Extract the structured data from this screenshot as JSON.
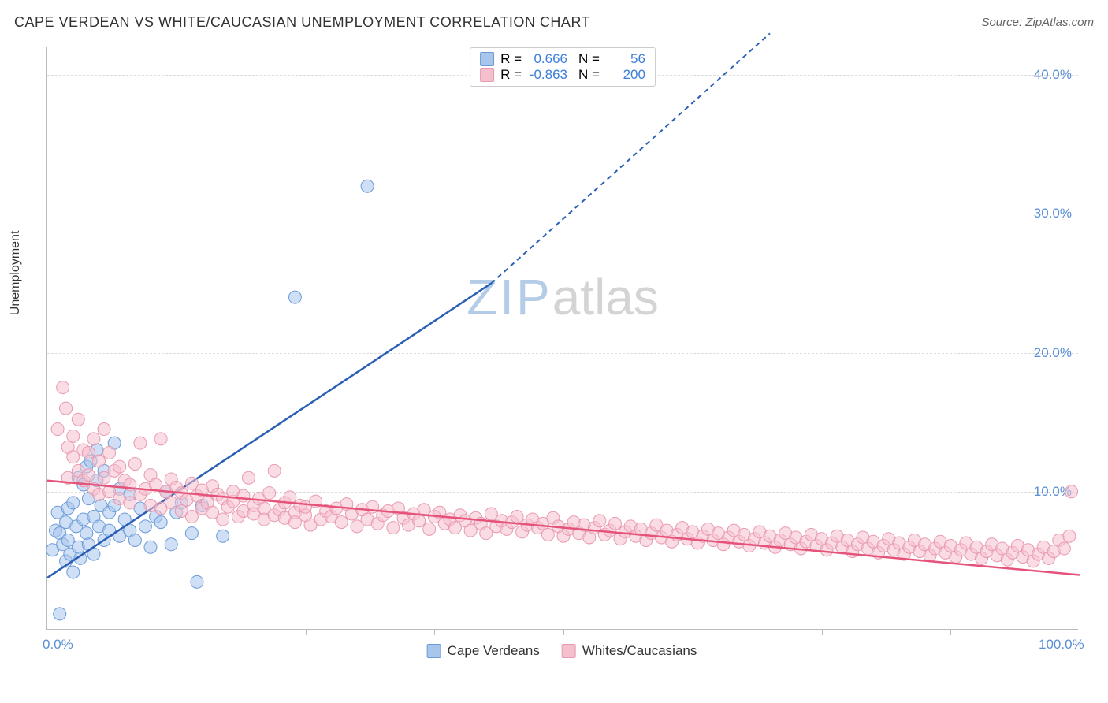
{
  "title": "CAPE VERDEAN VS WHITE/CAUCASIAN UNEMPLOYMENT CORRELATION CHART",
  "source_label": "Source: ZipAtlas.com",
  "y_axis_label": "Unemployment",
  "watermark_part1": "ZIP",
  "watermark_part2": "atlas",
  "watermark_color1": "#b5cce8",
  "watermark_color2": "#d4d4d4",
  "chart": {
    "type": "scatter",
    "xlim": [
      0,
      100
    ],
    "ylim": [
      0,
      42
    ],
    "x_ticks": [
      0,
      100
    ],
    "x_tick_labels": [
      "0.0%",
      "100.0%"
    ],
    "x_minor_ticks": [
      12.5,
      25,
      37.5,
      50,
      62.5,
      75,
      87.5
    ],
    "y_ticks": [
      10,
      20,
      30,
      40
    ],
    "y_tick_labels": [
      "10.0%",
      "20.0%",
      "30.0%",
      "40.0%"
    ],
    "y_tick_color": "#5b8fd6",
    "x_tick_color": "#5b8fd6",
    "grid_color": "#dddddd",
    "background_color": "#ffffff",
    "axis_color": "#bbbbbb",
    "marker_radius": 8,
    "marker_opacity": 0.55,
    "series": [
      {
        "name": "Cape Verdeans",
        "color_fill": "#a8c5ec",
        "color_stroke": "#6b9bd8",
        "r_value": "0.666",
        "n_value": "56",
        "trend": {
          "x1": 0,
          "y1": 3.8,
          "x2": 43,
          "y2": 25.0,
          "dashed_to_x": 70,
          "dashed_to_y": 43,
          "color": "#2a5fb5",
          "width": 2.5
        },
        "points": [
          [
            0.5,
            5.8
          ],
          [
            0.8,
            7.2
          ],
          [
            1.0,
            8.5
          ],
          [
            1.2,
            1.2
          ],
          [
            1.2,
            7.0
          ],
          [
            1.5,
            6.2
          ],
          [
            1.8,
            5.0
          ],
          [
            1.8,
            7.8
          ],
          [
            2.0,
            8.8
          ],
          [
            2.0,
            6.5
          ],
          [
            2.2,
            5.5
          ],
          [
            2.5,
            4.2
          ],
          [
            2.5,
            9.2
          ],
          [
            2.8,
            7.5
          ],
          [
            3.0,
            6.0
          ],
          [
            3.0,
            11.0
          ],
          [
            3.2,
            5.2
          ],
          [
            3.5,
            8.0
          ],
          [
            3.5,
            10.5
          ],
          [
            3.8,
            7.0
          ],
          [
            3.8,
            11.8
          ],
          [
            4.0,
            6.2
          ],
          [
            4.0,
            9.5
          ],
          [
            4.2,
            12.2
          ],
          [
            4.5,
            5.5
          ],
          [
            4.5,
            8.2
          ],
          [
            4.8,
            10.8
          ],
          [
            4.8,
            13.0
          ],
          [
            5.0,
            7.5
          ],
          [
            5.2,
            9.0
          ],
          [
            5.5,
            6.5
          ],
          [
            5.5,
            11.5
          ],
          [
            6.0,
            8.5
          ],
          [
            6.0,
            7.2
          ],
          [
            6.5,
            9.0
          ],
          [
            6.5,
            13.5
          ],
          [
            7.0,
            6.8
          ],
          [
            7.0,
            10.2
          ],
          [
            7.5,
            8.0
          ],
          [
            8.0,
            7.2
          ],
          [
            8.0,
            9.8
          ],
          [
            8.5,
            6.5
          ],
          [
            9.0,
            8.8
          ],
          [
            9.5,
            7.5
          ],
          [
            10.0,
            6.0
          ],
          [
            10.5,
            8.2
          ],
          [
            11.0,
            7.8
          ],
          [
            11.5,
            10.0
          ],
          [
            12.0,
            6.2
          ],
          [
            12.5,
            8.5
          ],
          [
            13.0,
            9.2
          ],
          [
            14.0,
            7.0
          ],
          [
            15.0,
            9.0
          ],
          [
            17.0,
            6.8
          ],
          [
            14.5,
            3.5
          ],
          [
            24.0,
            24.0
          ],
          [
            31.0,
            32.0
          ]
        ]
      },
      {
        "name": "Whites/Caucasians",
        "color_fill": "#f5c0ce",
        "color_stroke": "#e89ab0",
        "r_value": "-0.863",
        "n_value": "200",
        "trend": {
          "x1": 0,
          "y1": 10.8,
          "x2": 100,
          "y2": 4.0,
          "color": "#e6537a",
          "width": 2.5
        },
        "points": [
          [
            1.0,
            14.5
          ],
          [
            1.5,
            17.5
          ],
          [
            1.8,
            16.0
          ],
          [
            2.0,
            11.0
          ],
          [
            2.0,
            13.2
          ],
          [
            2.5,
            12.5
          ],
          [
            2.5,
            14.0
          ],
          [
            3.0,
            11.5
          ],
          [
            3.0,
            15.2
          ],
          [
            3.5,
            10.8
          ],
          [
            3.5,
            13.0
          ],
          [
            4.0,
            12.8
          ],
          [
            4.0,
            11.2
          ],
          [
            4.5,
            10.2
          ],
          [
            4.5,
            13.8
          ],
          [
            5.0,
            9.8
          ],
          [
            5.0,
            12.2
          ],
          [
            5.5,
            11.0
          ],
          [
            5.5,
            14.5
          ],
          [
            6.0,
            10.0
          ],
          [
            6.0,
            12.8
          ],
          [
            6.5,
            11.5
          ],
          [
            7.0,
            9.5
          ],
          [
            7.0,
            11.8
          ],
          [
            7.5,
            10.8
          ],
          [
            8.0,
            9.2
          ],
          [
            8.0,
            10.5
          ],
          [
            8.5,
            12.0
          ],
          [
            9.0,
            9.8
          ],
          [
            9.0,
            13.5
          ],
          [
            9.5,
            10.2
          ],
          [
            10.0,
            9.0
          ],
          [
            10.0,
            11.2
          ],
          [
            10.5,
            10.5
          ],
          [
            11.0,
            8.8
          ],
          [
            11.0,
            13.8
          ],
          [
            11.5,
            10.0
          ],
          [
            12.0,
            9.2
          ],
          [
            12.0,
            10.9
          ],
          [
            12.5,
            10.3
          ],
          [
            13.0,
            8.6
          ],
          [
            13.0,
            9.9
          ],
          [
            13.5,
            9.4
          ],
          [
            14.0,
            10.6
          ],
          [
            14.0,
            8.2
          ],
          [
            14.5,
            9.7
          ],
          [
            15.0,
            10.1
          ],
          [
            15.0,
            8.8
          ],
          [
            15.5,
            9.2
          ],
          [
            16.0,
            10.4
          ],
          [
            16.0,
            8.5
          ],
          [
            16.5,
            9.8
          ],
          [
            17.0,
            8.0
          ],
          [
            17.0,
            9.5
          ],
          [
            17.5,
            8.9
          ],
          [
            18.0,
            9.3
          ],
          [
            18.0,
            10.0
          ],
          [
            18.5,
            8.2
          ],
          [
            19.0,
            9.7
          ],
          [
            19.0,
            8.6
          ],
          [
            19.5,
            11.0
          ],
          [
            20.0,
            9.0
          ],
          [
            20.0,
            8.4
          ],
          [
            20.5,
            9.5
          ],
          [
            21.0,
            8.0
          ],
          [
            21.0,
            8.8
          ],
          [
            21.5,
            9.9
          ],
          [
            22.0,
            8.3
          ],
          [
            22.0,
            11.5
          ],
          [
            22.5,
            8.7
          ],
          [
            23.0,
            9.2
          ],
          [
            23.0,
            8.1
          ],
          [
            23.5,
            9.6
          ],
          [
            24.0,
            8.5
          ],
          [
            24.0,
            7.8
          ],
          [
            24.5,
            9.0
          ],
          [
            25.0,
            8.3
          ],
          [
            25.0,
            8.9
          ],
          [
            25.5,
            7.6
          ],
          [
            26.0,
            9.3
          ],
          [
            26.5,
            8.0
          ],
          [
            27.0,
            8.6
          ],
          [
            27.5,
            8.2
          ],
          [
            28.0,
            8.8
          ],
          [
            28.5,
            7.8
          ],
          [
            29.0,
            9.1
          ],
          [
            29.5,
            8.4
          ],
          [
            30.0,
            7.5
          ],
          [
            30.5,
            8.7
          ],
          [
            31.0,
            8.0
          ],
          [
            31.5,
            8.9
          ],
          [
            32.0,
            7.7
          ],
          [
            32.5,
            8.3
          ],
          [
            33.0,
            8.6
          ],
          [
            33.5,
            7.4
          ],
          [
            34.0,
            8.8
          ],
          [
            34.5,
            8.1
          ],
          [
            35.0,
            7.6
          ],
          [
            35.5,
            8.4
          ],
          [
            36.0,
            7.9
          ],
          [
            36.5,
            8.7
          ],
          [
            37.0,
            7.3
          ],
          [
            37.5,
            8.2
          ],
          [
            38.0,
            8.5
          ],
          [
            38.5,
            7.7
          ],
          [
            39.0,
            8.0
          ],
          [
            39.5,
            7.4
          ],
          [
            40.0,
            8.3
          ],
          [
            40.5,
            7.9
          ],
          [
            41.0,
            7.2
          ],
          [
            41.5,
            8.1
          ],
          [
            42.0,
            7.7
          ],
          [
            42.5,
            7.0
          ],
          [
            43.0,
            8.4
          ],
          [
            43.5,
            7.5
          ],
          [
            44.0,
            7.9
          ],
          [
            44.5,
            7.3
          ],
          [
            45.0,
            7.8
          ],
          [
            45.5,
            8.2
          ],
          [
            46.0,
            7.1
          ],
          [
            46.5,
            7.6
          ],
          [
            47.0,
            8.0
          ],
          [
            47.5,
            7.4
          ],
          [
            48.0,
            7.7
          ],
          [
            48.5,
            6.9
          ],
          [
            49.0,
            8.1
          ],
          [
            49.5,
            7.5
          ],
          [
            50.0,
            6.8
          ],
          [
            50.5,
            7.3
          ],
          [
            51.0,
            7.8
          ],
          [
            51.5,
            7.0
          ],
          [
            52.0,
            7.6
          ],
          [
            52.5,
            6.7
          ],
          [
            53.0,
            7.4
          ],
          [
            53.5,
            7.9
          ],
          [
            54.0,
            6.9
          ],
          [
            54.5,
            7.2
          ],
          [
            55.0,
            7.7
          ],
          [
            55.5,
            6.6
          ],
          [
            56.0,
            7.1
          ],
          [
            56.5,
            7.5
          ],
          [
            57.0,
            6.8
          ],
          [
            57.5,
            7.3
          ],
          [
            58.0,
            6.5
          ],
          [
            58.5,
            7.0
          ],
          [
            59.0,
            7.6
          ],
          [
            59.5,
            6.7
          ],
          [
            60.0,
            7.2
          ],
          [
            60.5,
            6.4
          ],
          [
            61.0,
            6.9
          ],
          [
            61.5,
            7.4
          ],
          [
            62.0,
            6.6
          ],
          [
            62.5,
            7.1
          ],
          [
            63.0,
            6.3
          ],
          [
            63.5,
            6.8
          ],
          [
            64.0,
            7.3
          ],
          [
            64.5,
            6.5
          ],
          [
            65.0,
            7.0
          ],
          [
            65.5,
            6.2
          ],
          [
            66.0,
            6.7
          ],
          [
            66.5,
            7.2
          ],
          [
            67.0,
            6.4
          ],
          [
            67.5,
            6.9
          ],
          [
            68.0,
            6.1
          ],
          [
            68.5,
            6.6
          ],
          [
            69.0,
            7.1
          ],
          [
            69.5,
            6.3
          ],
          [
            70.0,
            6.8
          ],
          [
            70.5,
            6.0
          ],
          [
            71.0,
            6.5
          ],
          [
            71.5,
            7.0
          ],
          [
            72.0,
            6.2
          ],
          [
            72.5,
            6.7
          ],
          [
            73.0,
            5.9
          ],
          [
            73.5,
            6.4
          ],
          [
            74.0,
            6.9
          ],
          [
            74.5,
            6.1
          ],
          [
            75.0,
            6.6
          ],
          [
            75.5,
            5.8
          ],
          [
            76.0,
            6.3
          ],
          [
            76.5,
            6.8
          ],
          [
            77.0,
            6.0
          ],
          [
            77.5,
            6.5
          ],
          [
            78.0,
            5.7
          ],
          [
            78.5,
            6.2
          ],
          [
            79.0,
            6.7
          ],
          [
            79.5,
            5.9
          ],
          [
            80.0,
            6.4
          ],
          [
            80.5,
            5.6
          ],
          [
            81.0,
            6.1
          ],
          [
            81.5,
            6.6
          ],
          [
            82.0,
            5.8
          ],
          [
            82.5,
            6.3
          ],
          [
            83.0,
            5.5
          ],
          [
            83.5,
            6.0
          ],
          [
            84.0,
            6.5
          ],
          [
            84.5,
            5.7
          ],
          [
            85.0,
            6.2
          ],
          [
            85.5,
            5.4
          ],
          [
            86.0,
            5.9
          ],
          [
            86.5,
            6.4
          ],
          [
            87.0,
            5.6
          ],
          [
            87.5,
            6.1
          ],
          [
            88.0,
            5.3
          ],
          [
            88.5,
            5.8
          ],
          [
            89.0,
            6.3
          ],
          [
            89.5,
            5.5
          ],
          [
            90.0,
            6.0
          ],
          [
            90.5,
            5.2
          ],
          [
            91.0,
            5.7
          ],
          [
            91.5,
            6.2
          ],
          [
            92.0,
            5.4
          ],
          [
            92.5,
            5.9
          ],
          [
            93.0,
            5.1
          ],
          [
            93.5,
            5.6
          ],
          [
            94.0,
            6.1
          ],
          [
            94.5,
            5.3
          ],
          [
            95.0,
            5.8
          ],
          [
            95.5,
            5.0
          ],
          [
            96.0,
            5.5
          ],
          [
            96.5,
            6.0
          ],
          [
            97.0,
            5.2
          ],
          [
            97.5,
            5.7
          ],
          [
            98.0,
            6.5
          ],
          [
            98.5,
            5.9
          ],
          [
            99.0,
            6.8
          ],
          [
            99.2,
            10.0
          ]
        ]
      }
    ]
  },
  "legend_stat_labels": {
    "r": "R =",
    "n": "N ="
  },
  "stat_value_color": "#3b7dd8"
}
